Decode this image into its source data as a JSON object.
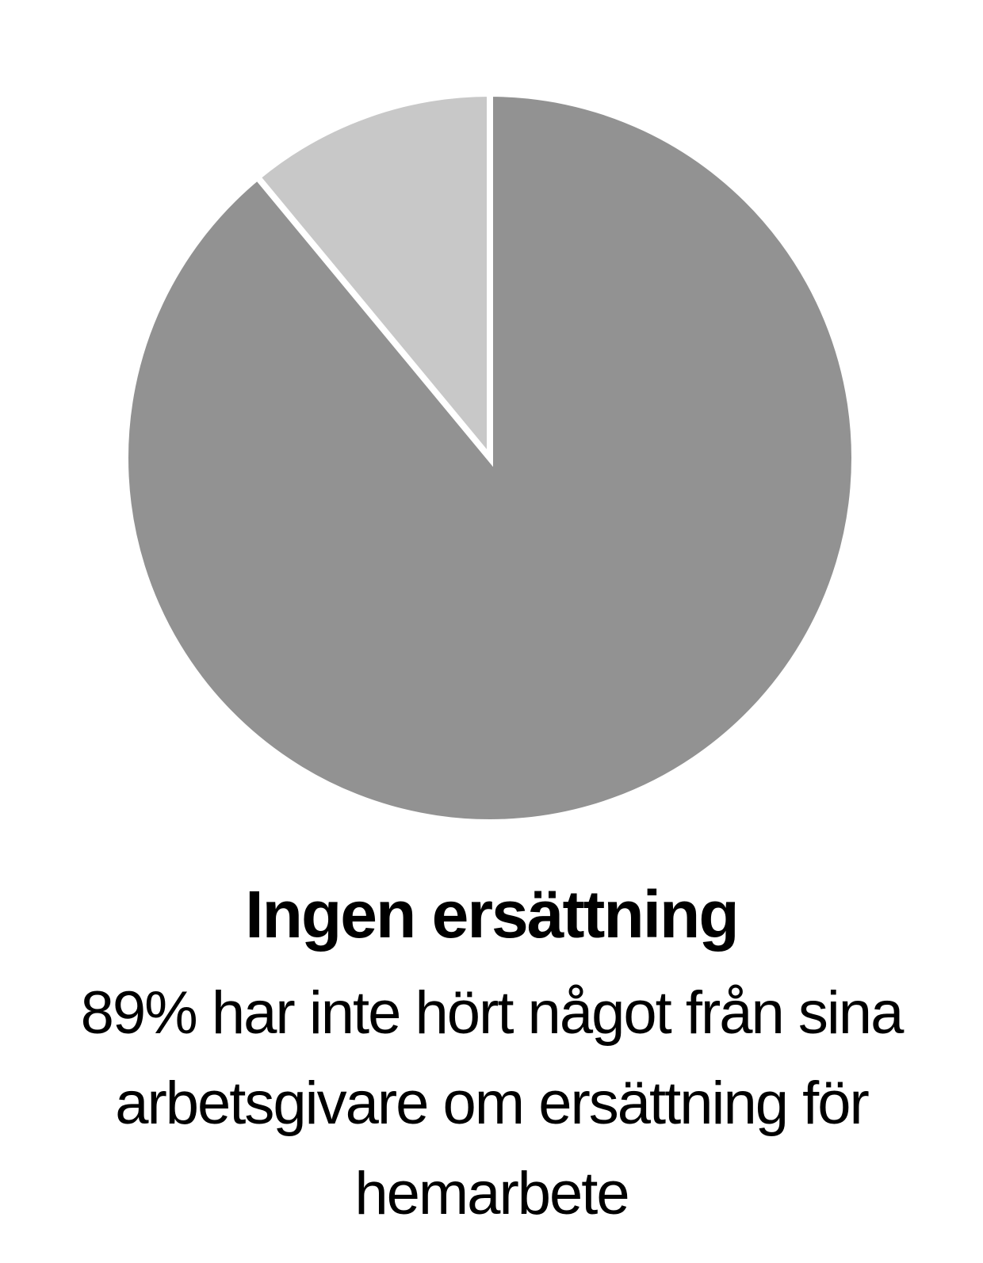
{
  "chart_data": {
    "type": "pie",
    "title": "Ingen ersättning",
    "subtitle": "89% har inte hört något från sina arbetsgivare om ersättning för hemarbete",
    "slices": [
      {
        "value": 89,
        "color": "#929292"
      },
      {
        "value": 11,
        "color": "#c8c8c8"
      }
    ],
    "separator_color": "#ffffff"
  }
}
